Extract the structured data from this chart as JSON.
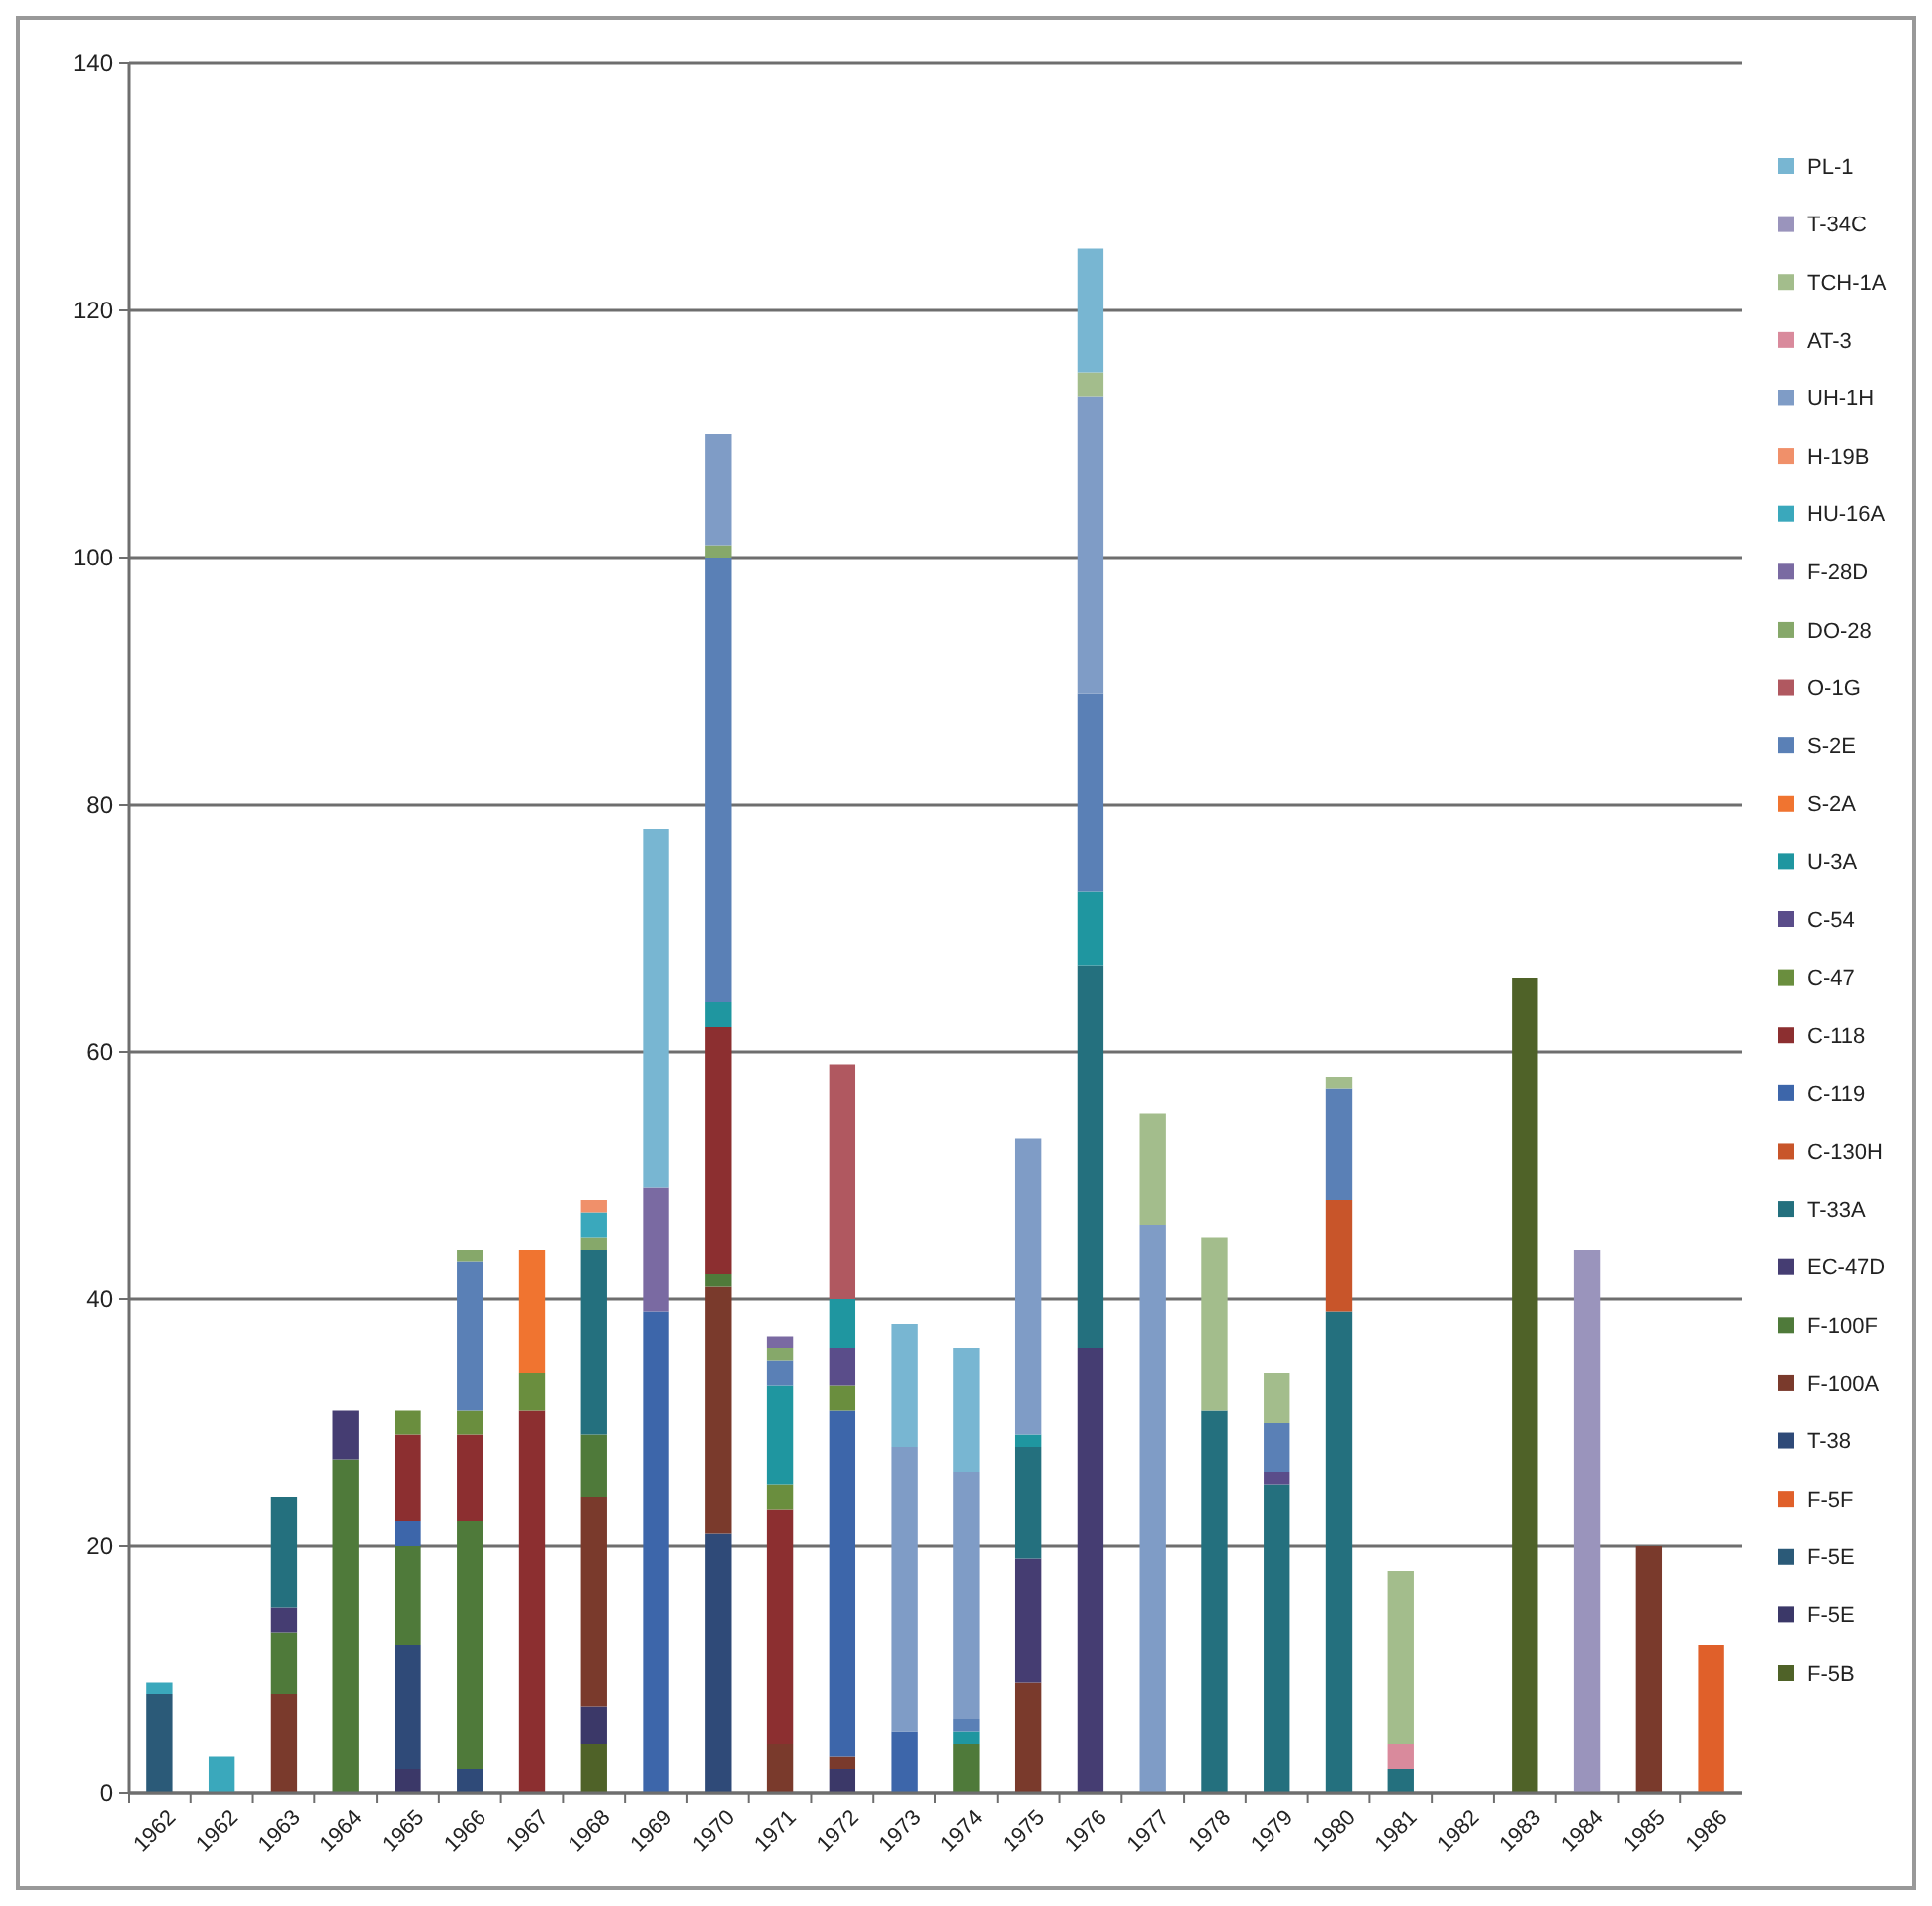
{
  "chart_data": {
    "type": "bar",
    "stacked": true,
    "legend": "right",
    "grid": "y",
    "categories": [
      "1962",
      "1962",
      "1963",
      "1964",
      "1965",
      "1966",
      "1967",
      "1968",
      "1969",
      "1970",
      "1971",
      "1972",
      "1973",
      "1974",
      "1975",
      "1976",
      "1977",
      "1978",
      "1979",
      "1980",
      "1981",
      "1982",
      "1983",
      "1984",
      "1985",
      "1986"
    ],
    "ylim": [
      0,
      140
    ],
    "yticks": [
      0,
      20,
      40,
      60,
      80,
      100,
      120,
      140
    ],
    "series": [
      {
        "name": "F-5B",
        "color": "#4f6228",
        "values": [
          null,
          null,
          null,
          null,
          null,
          null,
          null,
          4,
          null,
          null,
          null,
          null,
          null,
          null,
          null,
          null,
          null,
          null,
          null,
          null,
          null,
          null,
          66,
          null,
          null,
          null
        ]
      },
      {
        "name": "F-5E",
        "color": "#3b3868",
        "values": [
          null,
          null,
          null,
          null,
          2,
          null,
          null,
          3,
          null,
          null,
          null,
          2,
          null,
          null,
          null,
          null,
          null,
          null,
          null,
          null,
          null,
          null,
          null,
          null,
          null,
          null
        ]
      },
      {
        "name": "F-5E",
        "color": "#2b5a78",
        "values": [
          8,
          null,
          null,
          null,
          null,
          null,
          null,
          null,
          null,
          null,
          null,
          null,
          null,
          null,
          null,
          null,
          null,
          null,
          null,
          null,
          null,
          null,
          null,
          null,
          null,
          null
        ]
      },
      {
        "name": "F-5F",
        "color": "#e0602a",
        "values": [
          null,
          null,
          null,
          null,
          null,
          null,
          null,
          null,
          null,
          null,
          null,
          null,
          null,
          null,
          null,
          null,
          null,
          null,
          null,
          null,
          null,
          null,
          null,
          null,
          null,
          12
        ]
      },
      {
        "name": "T-38",
        "color": "#2f4a78",
        "values": [
          null,
          null,
          null,
          null,
          10,
          2,
          null,
          null,
          null,
          21,
          null,
          null,
          null,
          null,
          null,
          null,
          null,
          null,
          null,
          null,
          null,
          null,
          null,
          null,
          null,
          null
        ]
      },
      {
        "name": "F-100A",
        "color": "#7a3a2c",
        "values": [
          null,
          null,
          8,
          null,
          null,
          null,
          null,
          17,
          null,
          20,
          4,
          1,
          null,
          null,
          9,
          null,
          null,
          null,
          null,
          null,
          null,
          null,
          null,
          null,
          20,
          null
        ]
      },
      {
        "name": "F-100F",
        "color": "#4f7a3a",
        "values": [
          null,
          null,
          5,
          27,
          8,
          20,
          null,
          5,
          null,
          1,
          null,
          null,
          null,
          4,
          null,
          null,
          null,
          null,
          null,
          null,
          null,
          null,
          null,
          null,
          null,
          null
        ]
      },
      {
        "name": "EC-47D",
        "color": "#453d72",
        "values": [
          null,
          null,
          2,
          4,
          null,
          null,
          null,
          null,
          null,
          null,
          null,
          null,
          null,
          null,
          10,
          36,
          null,
          null,
          null,
          null,
          null,
          null,
          null,
          null,
          null,
          null
        ]
      },
      {
        "name": "T-33A",
        "color": "#24707e",
        "values": [
          null,
          null,
          9,
          null,
          null,
          null,
          null,
          15,
          null,
          null,
          null,
          null,
          null,
          null,
          9,
          31,
          null,
          31,
          25,
          39,
          2,
          null,
          null,
          null,
          null,
          null
        ]
      },
      {
        "name": "C-130H",
        "color": "#c8552a",
        "values": [
          null,
          null,
          null,
          null,
          null,
          null,
          null,
          null,
          null,
          null,
          null,
          null,
          null,
          null,
          null,
          null,
          null,
          null,
          null,
          9,
          null,
          null,
          null,
          null,
          null,
          null
        ]
      },
      {
        "name": "C-119",
        "color": "#3d66aa",
        "values": [
          null,
          null,
          null,
          null,
          2,
          null,
          null,
          null,
          39,
          null,
          null,
          28,
          5,
          null,
          null,
          null,
          null,
          null,
          null,
          null,
          null,
          null,
          null,
          null,
          null,
          null
        ]
      },
      {
        "name": "C-118",
        "color": "#8c2f30",
        "values": [
          null,
          null,
          null,
          null,
          7,
          7,
          31,
          null,
          null,
          20,
          19,
          null,
          null,
          null,
          null,
          null,
          null,
          null,
          null,
          null,
          null,
          null,
          null,
          null,
          null,
          null
        ]
      },
      {
        "name": "C-47",
        "color": "#6a8e3e",
        "values": [
          null,
          null,
          null,
          null,
          2,
          2,
          3,
          null,
          null,
          null,
          2,
          2,
          null,
          null,
          null,
          null,
          null,
          null,
          null,
          null,
          null,
          null,
          null,
          null,
          null,
          null
        ]
      },
      {
        "name": "C-54",
        "color": "#5a4d8a",
        "values": [
          null,
          null,
          null,
          null,
          null,
          null,
          null,
          null,
          null,
          null,
          null,
          3,
          null,
          null,
          null,
          null,
          null,
          null,
          1,
          null,
          null,
          null,
          null,
          null,
          null,
          null
        ]
      },
      {
        "name": "U-3A",
        "color": "#1f96a0",
        "values": [
          null,
          null,
          null,
          null,
          null,
          null,
          null,
          null,
          null,
          2,
          8,
          4,
          null,
          1,
          1,
          6,
          null,
          null,
          null,
          null,
          null,
          null,
          null,
          null,
          null,
          null
        ]
      },
      {
        "name": "S-2A",
        "color": "#f07430",
        "values": [
          null,
          null,
          null,
          null,
          null,
          null,
          10,
          null,
          null,
          null,
          null,
          null,
          null,
          null,
          null,
          null,
          null,
          null,
          null,
          null,
          null,
          null,
          null,
          null,
          null,
          null
        ]
      },
      {
        "name": "S-2E",
        "color": "#5a80b6",
        "values": [
          null,
          null,
          null,
          null,
          null,
          12,
          null,
          null,
          null,
          36,
          2,
          null,
          null,
          1,
          null,
          16,
          null,
          null,
          4,
          9,
          null,
          null,
          null,
          null,
          null,
          null
        ]
      },
      {
        "name": "O-1G",
        "color": "#b05860",
        "values": [
          null,
          null,
          null,
          null,
          null,
          null,
          null,
          null,
          null,
          null,
          null,
          19,
          null,
          null,
          null,
          null,
          null,
          null,
          null,
          null,
          null,
          null,
          null,
          null,
          null,
          null
        ]
      },
      {
        "name": "DO-28",
        "color": "#86a86a",
        "values": [
          null,
          null,
          null,
          null,
          null,
          1,
          null,
          1,
          null,
          1,
          1,
          null,
          null,
          null,
          null,
          null,
          null,
          null,
          null,
          null,
          null,
          null,
          null,
          null,
          null,
          null
        ]
      },
      {
        "name": "F-28D",
        "color": "#7a6aa2",
        "values": [
          null,
          null,
          null,
          null,
          null,
          null,
          null,
          null,
          10,
          null,
          1,
          null,
          null,
          null,
          null,
          null,
          null,
          null,
          null,
          null,
          null,
          null,
          null,
          null,
          null,
          null
        ]
      },
      {
        "name": "HU-16A",
        "color": "#3aa8bc",
        "values": [
          1,
          3,
          null,
          null,
          null,
          null,
          null,
          2,
          null,
          null,
          null,
          null,
          null,
          null,
          null,
          null,
          null,
          null,
          null,
          null,
          null,
          null,
          null,
          null,
          null,
          null
        ]
      },
      {
        "name": "H-19B",
        "color": "#f0906a",
        "values": [
          null,
          null,
          null,
          null,
          null,
          null,
          null,
          1,
          null,
          null,
          null,
          null,
          null,
          null,
          null,
          null,
          null,
          null,
          null,
          null,
          null,
          null,
          null,
          null,
          null,
          null
        ]
      },
      {
        "name": "UH-1H",
        "color": "#7f9cc6",
        "values": [
          null,
          null,
          null,
          null,
          null,
          null,
          null,
          null,
          null,
          9,
          null,
          null,
          23,
          20,
          24,
          24,
          46,
          null,
          null,
          null,
          null,
          null,
          null,
          null,
          null,
          null
        ]
      },
      {
        "name": "AT-3",
        "color": "#d98a9c",
        "values": [
          null,
          null,
          null,
          null,
          null,
          null,
          null,
          null,
          null,
          null,
          null,
          null,
          null,
          null,
          null,
          null,
          null,
          null,
          null,
          null,
          2,
          null,
          null,
          null,
          null,
          null
        ]
      },
      {
        "name": "TCH-1A",
        "color": "#a3bd8c",
        "values": [
          null,
          null,
          null,
          null,
          null,
          null,
          null,
          null,
          null,
          null,
          null,
          null,
          null,
          null,
          null,
          2,
          9,
          14,
          4,
          1,
          14,
          null,
          null,
          null,
          null,
          null
        ]
      },
      {
        "name": "T-34C",
        "color": "#9a94bc",
        "values": [
          null,
          null,
          null,
          null,
          null,
          null,
          null,
          null,
          null,
          null,
          null,
          null,
          null,
          null,
          null,
          null,
          null,
          null,
          null,
          null,
          null,
          null,
          null,
          44,
          null,
          null
        ]
      },
      {
        "name": "PL-1",
        "color": "#78b6d2",
        "values": [
          null,
          null,
          null,
          null,
          null,
          null,
          null,
          null,
          29,
          null,
          null,
          null,
          10,
          10,
          null,
          10,
          null,
          null,
          null,
          null,
          null,
          null,
          null,
          null,
          null,
          null
        ]
      }
    ]
  }
}
